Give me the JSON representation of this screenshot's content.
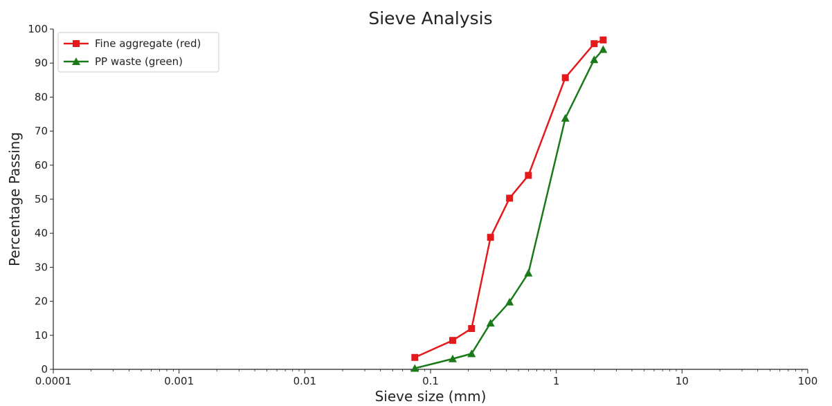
{
  "chart_data": {
    "type": "line",
    "title": "Sieve Analysis",
    "xlabel": "Sieve size (mm)",
    "ylabel": "Percentage Passing",
    "xscale": "log",
    "xlim": [
      0.0001,
      100
    ],
    "ylim": [
      0,
      100
    ],
    "xticks": [
      "0.0001",
      "0.001",
      "0.01",
      "0.1",
      "1",
      "10",
      "100"
    ],
    "yticks": [
      0,
      10,
      20,
      30,
      40,
      50,
      60,
      70,
      80,
      90,
      100
    ],
    "grid": false,
    "legend_position": "top-left",
    "series": [
      {
        "name": "Fine aggregate (red)",
        "color": "#e31a1c",
        "marker": "square",
        "x": [
          0.075,
          0.15,
          0.212,
          0.3,
          0.425,
          0.6,
          1.18,
          2.0,
          2.36
        ],
        "y": [
          3.5,
          8.5,
          12,
          38.8,
          50.3,
          57,
          85.7,
          95.7,
          96.8
        ]
      },
      {
        "name": "PP waste (green)",
        "color": "#1a7a1a",
        "marker": "triangle",
        "x": [
          0.075,
          0.15,
          0.212,
          0.3,
          0.425,
          0.6,
          1.18,
          2.0,
          2.36
        ],
        "y": [
          0.3,
          3.1,
          4.6,
          13.6,
          19.8,
          28.3,
          73.8,
          91,
          94
        ]
      }
    ]
  }
}
